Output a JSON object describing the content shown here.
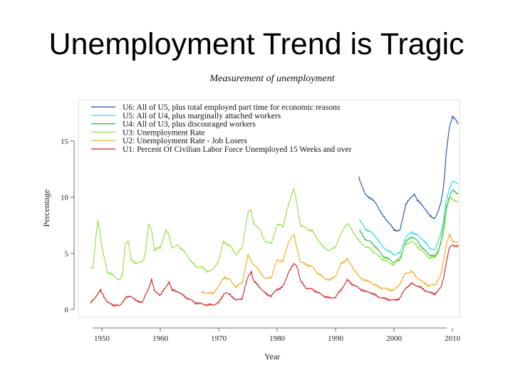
{
  "slide": {
    "title": "Unemployment Trend is Tragic"
  },
  "chart_data": {
    "type": "line",
    "title": "Measurement of unemployment",
    "xlabel": "Year",
    "ylabel": "Percentage",
    "xlim": [
      1948,
      2011
    ],
    "ylim": [
      0,
      18
    ],
    "x_ticks": [
      1950,
      1960,
      1970,
      1980,
      1990,
      2000,
      2010
    ],
    "y_ticks": [
      0,
      5,
      10,
      15
    ],
    "grid": false,
    "legend_position": "top-left",
    "series": [
      {
        "name": "U6: All of U5, plus total employed part time for economic reasons",
        "color": "#1f4fa8",
        "points": [
          [
            1994,
            11.8
          ],
          [
            1994.5,
            11
          ],
          [
            1995,
            10.3
          ],
          [
            1996,
            9.9
          ],
          [
            1997,
            9.4
          ],
          [
            1998,
            8.4
          ],
          [
            1999,
            7.8
          ],
          [
            2000,
            7.1
          ],
          [
            2001,
            7.0
          ],
          [
            2001.5,
            8.1
          ],
          [
            2002,
            9.4
          ],
          [
            2002.5,
            9.7
          ],
          [
            2003,
            10.0
          ],
          [
            2003.5,
            10.3
          ],
          [
            2004,
            9.7
          ],
          [
            2005,
            9.2
          ],
          [
            2006,
            8.4
          ],
          [
            2007,
            8.1
          ],
          [
            2007.5,
            8.6
          ],
          [
            2008,
            9.5
          ],
          [
            2008.5,
            11.0
          ],
          [
            2009,
            14.2
          ],
          [
            2009.5,
            16.3
          ],
          [
            2010,
            17.2
          ],
          [
            2010.5,
            16.9
          ],
          [
            2011,
            16.5
          ]
        ]
      },
      {
        "name": "U5: All of U4, plus marginally attached workers",
        "color": "#22d9e6",
        "points": [
          [
            1994,
            8.1
          ],
          [
            1995,
            7.2
          ],
          [
            1996,
            6.9
          ],
          [
            1997,
            6.4
          ],
          [
            1998,
            5.6
          ],
          [
            1999,
            5.2
          ],
          [
            2000,
            4.9
          ],
          [
            2001,
            5.0
          ],
          [
            2002,
            6.4
          ],
          [
            2003,
            6.9
          ],
          [
            2004,
            6.6
          ],
          [
            2005,
            6.2
          ],
          [
            2006,
            5.5
          ],
          [
            2007,
            5.3
          ],
          [
            2007.5,
            5.9
          ],
          [
            2008,
            6.8
          ],
          [
            2008.5,
            8.0
          ],
          [
            2009,
            9.8
          ],
          [
            2009.5,
            10.8
          ],
          [
            2010,
            11.4
          ],
          [
            2011,
            11.2
          ]
        ]
      },
      {
        "name": "U4: All of U3, plus discouraged workers",
        "color": "#2db54a",
        "points": [
          [
            1994,
            7.1
          ],
          [
            1995,
            6.3
          ],
          [
            1996,
            6.0
          ],
          [
            1997,
            5.5
          ],
          [
            1998,
            4.8
          ],
          [
            1999,
            4.5
          ],
          [
            2000,
            4.2
          ],
          [
            2001,
            4.4
          ],
          [
            2002,
            6.0
          ],
          [
            2003,
            6.5
          ],
          [
            2004,
            6.1
          ],
          [
            2005,
            5.4
          ],
          [
            2006,
            4.9
          ],
          [
            2007,
            4.7
          ],
          [
            2007.5,
            5.2
          ],
          [
            2008,
            6.0
          ],
          [
            2008.5,
            7.4
          ],
          [
            2009,
            9.2
          ],
          [
            2009.5,
            10.1
          ],
          [
            2010,
            10.6
          ],
          [
            2011,
            10.3
          ]
        ]
      },
      {
        "name": "U3: Unemployment Rate",
        "color": "#8de03a",
        "points": [
          [
            1948,
            3.8
          ],
          [
            1948.5,
            3.6
          ],
          [
            1949,
            6.5
          ],
          [
            1949.3,
            7.9
          ],
          [
            1949.8,
            6.6
          ],
          [
            1950,
            5.5
          ],
          [
            1951,
            3.3
          ],
          [
            1952,
            3.0
          ],
          [
            1953,
            2.6
          ],
          [
            1953.5,
            3.0
          ],
          [
            1954,
            5.8
          ],
          [
            1954.5,
            6.1
          ],
          [
            1955,
            4.4
          ],
          [
            1956,
            4.1
          ],
          [
            1957,
            4.3
          ],
          [
            1957.5,
            5.2
          ],
          [
            1958,
            7.5
          ],
          [
            1958.5,
            7.1
          ],
          [
            1959,
            5.3
          ],
          [
            1960,
            5.5
          ],
          [
            1960.8,
            6.8
          ],
          [
            1961,
            7.0
          ],
          [
            1961.5,
            6.6
          ],
          [
            1962,
            5.5
          ],
          [
            1963,
            5.7
          ],
          [
            1964,
            5.2
          ],
          [
            1965,
            4.5
          ],
          [
            1966,
            3.8
          ],
          [
            1967,
            3.8
          ],
          [
            1968,
            3.4
          ],
          [
            1969,
            3.5
          ],
          [
            1970,
            4.4
          ],
          [
            1970.8,
            6.0
          ],
          [
            1971,
            6.0
          ],
          [
            1972,
            5.6
          ],
          [
            1973,
            4.9
          ],
          [
            1974,
            5.5
          ],
          [
            1975,
            8.6
          ],
          [
            1975.5,
            8.8
          ],
          [
            1976,
            7.7
          ],
          [
            1977,
            7.1
          ],
          [
            1978,
            6.0
          ],
          [
            1979,
            5.9
          ],
          [
            1980,
            7.5
          ],
          [
            1980.7,
            7.6
          ],
          [
            1981,
            7.3
          ],
          [
            1982,
            9.5
          ],
          [
            1982.9,
            10.8
          ],
          [
            1983,
            10.4
          ],
          [
            1984,
            7.5
          ],
          [
            1985,
            7.2
          ],
          [
            1986,
            7.0
          ],
          [
            1987,
            6.2
          ],
          [
            1988,
            5.5
          ],
          [
            1989,
            5.2
          ],
          [
            1990,
            5.6
          ],
          [
            1991,
            6.8
          ],
          [
            1992,
            7.7
          ],
          [
            1993,
            6.9
          ],
          [
            1994,
            6.1
          ],
          [
            1995,
            5.6
          ],
          [
            1996,
            5.4
          ],
          [
            1997,
            4.9
          ],
          [
            1998,
            4.5
          ],
          [
            1999,
            4.2
          ],
          [
            2000,
            4.0
          ],
          [
            2001,
            4.7
          ],
          [
            2002,
            5.8
          ],
          [
            2003,
            6.1
          ],
          [
            2004,
            5.6
          ],
          [
            2005,
            5.1
          ],
          [
            2006,
            4.6
          ],
          [
            2007,
            4.6
          ],
          [
            2007.5,
            5.0
          ],
          [
            2008,
            5.8
          ],
          [
            2008.5,
            6.8
          ],
          [
            2009,
            9.0
          ],
          [
            2009.5,
            9.9
          ],
          [
            2010,
            9.8
          ],
          [
            2011,
            9.6
          ]
        ]
      },
      {
        "name": "U2: Unemployment Rate - Job Losers",
        "color": "#f0a818",
        "points": [
          [
            1967,
            1.5
          ],
          [
            1968,
            1.5
          ],
          [
            1969,
            1.4
          ],
          [
            1970,
            2.1
          ],
          [
            1971,
            2.9
          ],
          [
            1972,
            2.6
          ],
          [
            1973,
            2.0
          ],
          [
            1974,
            2.4
          ],
          [
            1975,
            4.8
          ],
          [
            1976,
            4.0
          ],
          [
            1977,
            3.4
          ],
          [
            1978,
            2.7
          ],
          [
            1979,
            2.9
          ],
          [
            1980,
            4.4
          ],
          [
            1981,
            4.3
          ],
          [
            1982,
            6.1
          ],
          [
            1982.9,
            6.7
          ],
          [
            1983,
            6.3
          ],
          [
            1984,
            4.2
          ],
          [
            1985,
            4.0
          ],
          [
            1986,
            3.8
          ],
          [
            1987,
            3.2
          ],
          [
            1988,
            2.8
          ],
          [
            1989,
            2.6
          ],
          [
            1990,
            3.0
          ],
          [
            1991,
            4.1
          ],
          [
            1992,
            4.5
          ],
          [
            1993,
            3.7
          ],
          [
            1994,
            2.9
          ],
          [
            1995,
            2.6
          ],
          [
            1996,
            2.4
          ],
          [
            1997,
            2.1
          ],
          [
            1998,
            1.9
          ],
          [
            1999,
            1.8
          ],
          [
            2000,
            1.7
          ],
          [
            2001,
            2.3
          ],
          [
            2002,
            3.2
          ],
          [
            2003,
            3.4
          ],
          [
            2004,
            2.8
          ],
          [
            2005,
            2.4
          ],
          [
            2006,
            2.1
          ],
          [
            2007,
            2.2
          ],
          [
            2008,
            3.0
          ],
          [
            2008.5,
            4.4
          ],
          [
            2009,
            5.9
          ],
          [
            2009.5,
            6.6
          ],
          [
            2010,
            6.1
          ],
          [
            2011,
            6.0
          ]
        ]
      },
      {
        "name": "U1: Percent Of Civilian Labor Force Unemployed 15 Weeks and over",
        "color": "#cc1f1f",
        "points": [
          [
            1948,
            0.5
          ],
          [
            1949,
            1.2
          ],
          [
            1949.8,
            1.7
          ],
          [
            1950,
            1.5
          ],
          [
            1951,
            0.6
          ],
          [
            1952,
            0.4
          ],
          [
            1953,
            0.3
          ],
          [
            1954,
            1.0
          ],
          [
            1955,
            1.2
          ],
          [
            1956,
            0.7
          ],
          [
            1957,
            0.7
          ],
          [
            1958,
            1.9
          ],
          [
            1958.5,
            2.7
          ],
          [
            1959,
            1.6
          ],
          [
            1960,
            1.3
          ],
          [
            1961,
            2.0
          ],
          [
            1961.5,
            2.5
          ],
          [
            1962,
            1.7
          ],
          [
            1963,
            1.6
          ],
          [
            1964,
            1.2
          ],
          [
            1965,
            0.9
          ],
          [
            1966,
            0.6
          ],
          [
            1967,
            0.5
          ],
          [
            1968,
            0.4
          ],
          [
            1969,
            0.4
          ],
          [
            1970,
            0.6
          ],
          [
            1971,
            1.5
          ],
          [
            1972,
            1.3
          ],
          [
            1973,
            0.8
          ],
          [
            1974,
            1.0
          ],
          [
            1975,
            2.9
          ],
          [
            1975.6,
            3.3
          ],
          [
            1976,
            2.5
          ],
          [
            1977,
            2.0
          ],
          [
            1978,
            1.4
          ],
          [
            1979,
            1.2
          ],
          [
            1980,
            1.8
          ],
          [
            1981,
            2.0
          ],
          [
            1982,
            3.4
          ],
          [
            1983,
            4.1
          ],
          [
            1983.4,
            3.8
          ],
          [
            1984,
            2.5
          ],
          [
            1985,
            1.9
          ],
          [
            1986,
            1.8
          ],
          [
            1987,
            1.5
          ],
          [
            1988,
            1.2
          ],
          [
            1989,
            1.0
          ],
          [
            1990,
            1.1
          ],
          [
            1991,
            1.8
          ],
          [
            1992,
            2.6
          ],
          [
            1993,
            2.2
          ],
          [
            1994,
            1.9
          ],
          [
            1995,
            1.6
          ],
          [
            1996,
            1.5
          ],
          [
            1997,
            1.2
          ],
          [
            1998,
            1.0
          ],
          [
            1999,
            0.9
          ],
          [
            2000,
            0.8
          ],
          [
            2001,
            1.0
          ],
          [
            2002,
            1.9
          ],
          [
            2003,
            2.3
          ],
          [
            2004,
            2.1
          ],
          [
            2005,
            1.8
          ],
          [
            2006,
            1.5
          ],
          [
            2007,
            1.4
          ],
          [
            2008,
            1.9
          ],
          [
            2008.5,
            2.9
          ],
          [
            2009,
            4.3
          ],
          [
            2009.5,
            5.5
          ],
          [
            2010,
            5.8
          ],
          [
            2010.5,
            5.6
          ],
          [
            2011,
            5.6
          ]
        ]
      }
    ]
  }
}
